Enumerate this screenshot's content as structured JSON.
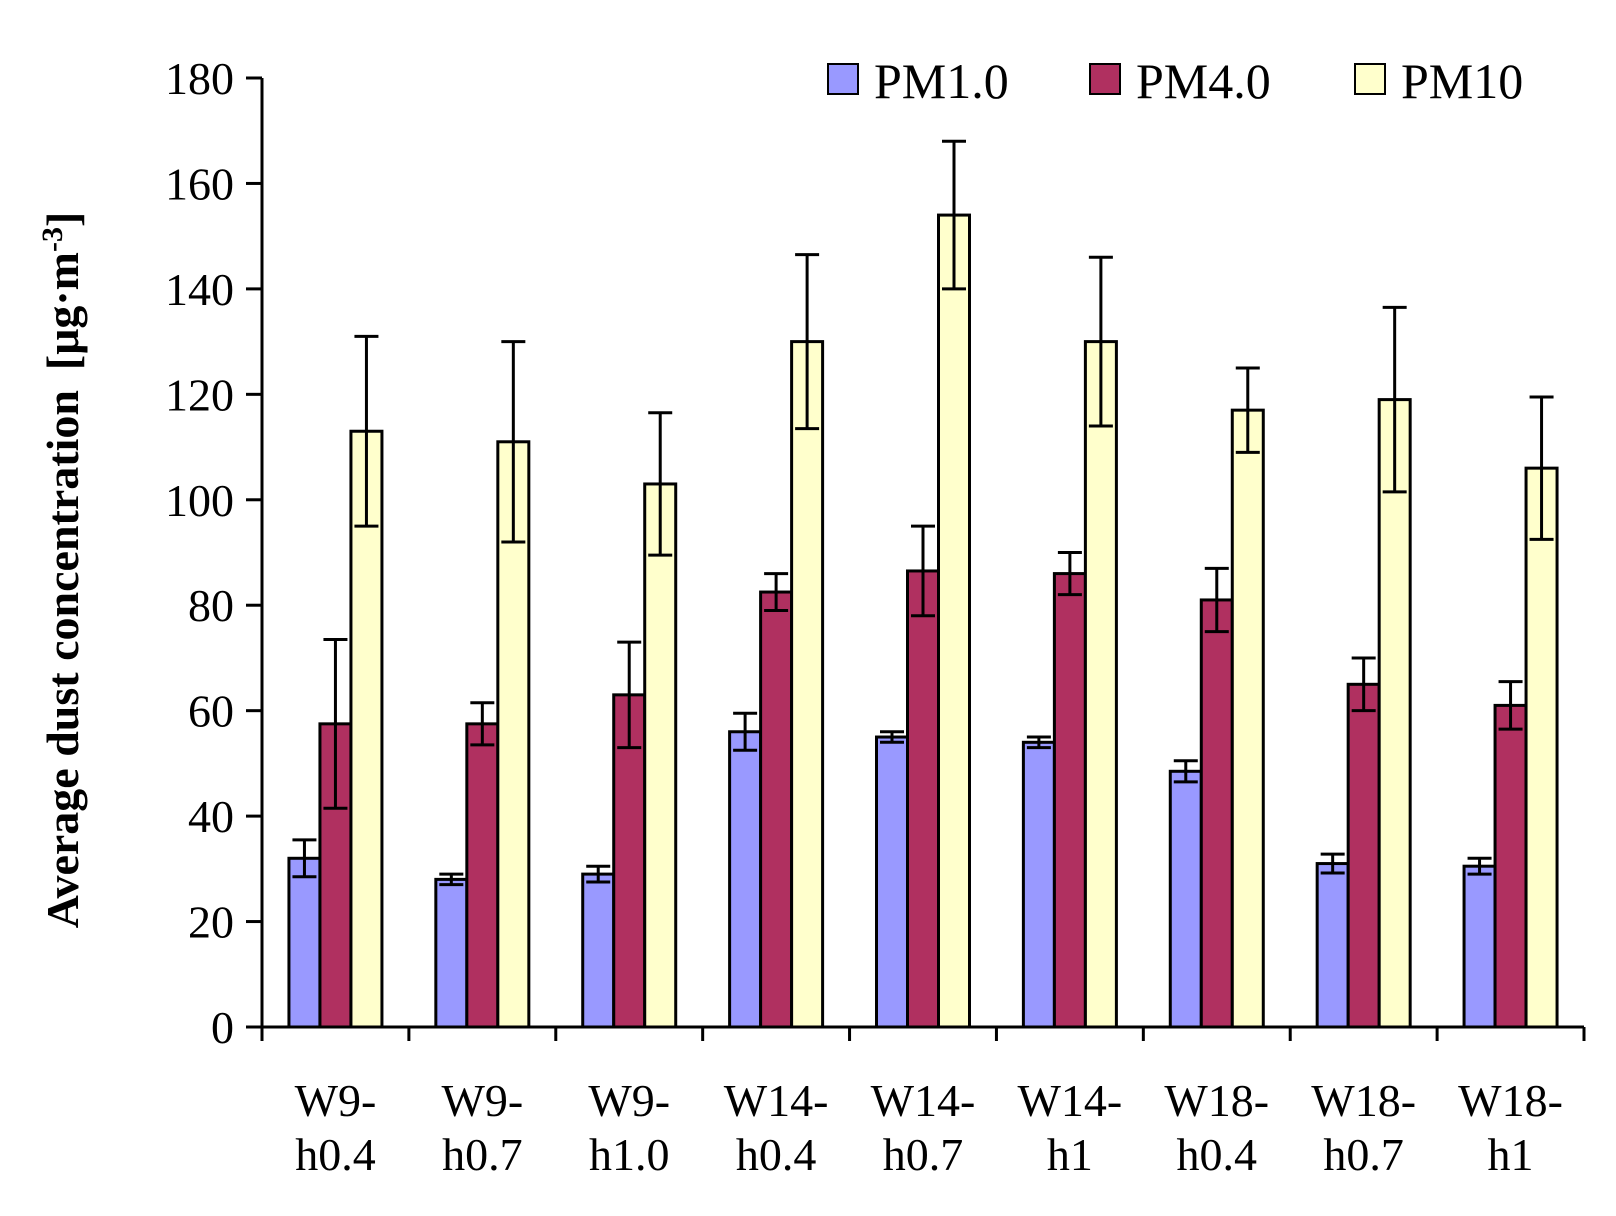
{
  "chart_data": {
    "type": "bar",
    "title": "",
    "xlabel": "",
    "ylabel": "Average dust concentration",
    "ylabel_unit": "[μg·m",
    "ylabel_unit_exp": "-3",
    "ylabel_unit_close": "]",
    "ylim": [
      0,
      180
    ],
    "yticks": [
      0,
      20,
      40,
      60,
      80,
      100,
      120,
      140,
      160,
      180
    ],
    "grid": false,
    "legend_position": "top-right",
    "categories": [
      [
        "W9-",
        "h0.4"
      ],
      [
        "W9-",
        "h0.7"
      ],
      [
        "W9-",
        "h1.0"
      ],
      [
        "W14-",
        "h0.4"
      ],
      [
        "W14-",
        "h0.7"
      ],
      [
        "W14-",
        "h1"
      ],
      [
        "W18-",
        "h0.4"
      ],
      [
        "W18-",
        "h0.7"
      ],
      [
        "W18-",
        "h1"
      ]
    ],
    "series": [
      {
        "name": "PM1.0",
        "color": "#9999ff",
        "values": [
          32,
          28,
          29,
          56,
          55,
          54,
          48.5,
          31,
          30.5
        ],
        "errors": [
          3.5,
          1,
          1.5,
          3.5,
          1,
          1,
          2,
          1.8,
          1.5
        ]
      },
      {
        "name": "PM4.0",
        "color": "#b03060",
        "values": [
          57.5,
          57.5,
          63,
          82.5,
          86.5,
          86,
          81,
          65,
          61
        ],
        "errors": [
          16,
          4,
          10,
          3.5,
          8.5,
          4,
          6,
          5,
          4.5
        ]
      },
      {
        "name": "PM10",
        "color": "#ffffcc",
        "values": [
          113,
          111,
          103,
          130,
          154,
          130,
          117,
          119,
          106
        ],
        "errors": [
          18,
          19,
          13.5,
          16.5,
          14,
          16,
          8,
          17.5,
          13.5
        ]
      }
    ]
  }
}
